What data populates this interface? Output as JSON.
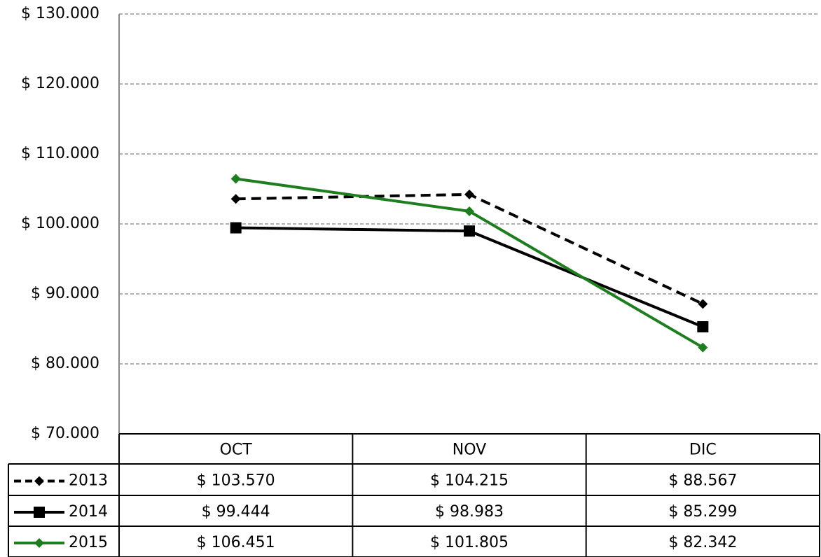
{
  "chart_data": {
    "type": "line",
    "categories": [
      "OCT",
      "NOV",
      "DIC"
    ],
    "series": [
      {
        "name": "2013",
        "color": "#000000",
        "dash": true,
        "marker": "diamond",
        "values": [
          103570,
          104215,
          88567
        ],
        "value_labels": [
          "$ 103.570",
          "$ 104.215",
          "$ 88.567"
        ]
      },
      {
        "name": "2014",
        "color": "#000000",
        "dash": false,
        "marker": "square",
        "values": [
          99444,
          98983,
          85299
        ],
        "value_labels": [
          "$ 99.444",
          "$ 98.983",
          "$ 85.299"
        ]
      },
      {
        "name": "2015",
        "color": "#1e7d1e",
        "dash": false,
        "marker": "diamond",
        "values": [
          106451,
          101805,
          82342
        ],
        "value_labels": [
          "$ 106.451",
          "$ 101.805",
          "$ 82.342"
        ]
      }
    ],
    "ylim": [
      70000,
      130000
    ],
    "yticks": [
      {
        "value": 70000,
        "label": "$ 70.000"
      },
      {
        "value": 80000,
        "label": "$ 80.000"
      },
      {
        "value": 90000,
        "label": "$ 90.000"
      },
      {
        "value": 100000,
        "label": "$ 100.000"
      },
      {
        "value": 110000,
        "label": "$ 110.000"
      },
      {
        "value": 120000,
        "label": "$ 120.000"
      },
      {
        "value": 130000,
        "label": "$ 130.000"
      }
    ],
    "grid": true
  }
}
